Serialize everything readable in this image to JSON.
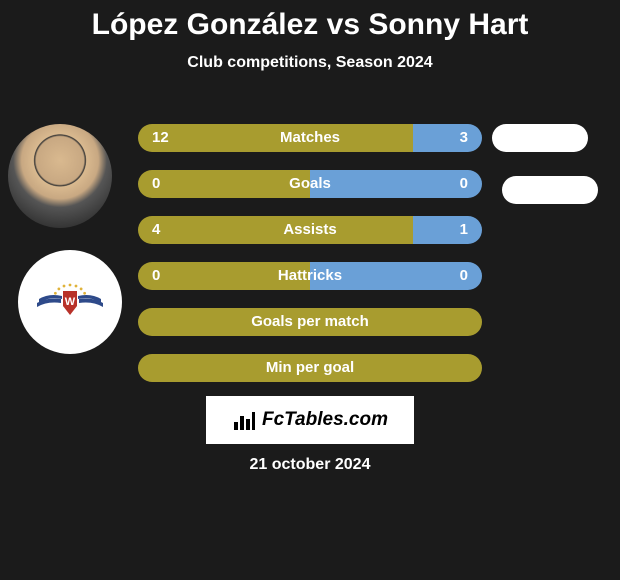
{
  "title": "López González vs Sonny Hart",
  "subtitle": "Club competitions, Season 2024",
  "date": "21 october 2024",
  "fctables": "FcTables.com",
  "colors": {
    "olive": "#a89c2f",
    "blue": "#6aa0d7",
    "background": "#1b1b1b",
    "white": "#ffffff",
    "text": "#ffffff"
  },
  "comparison_rows": [
    {
      "label": "Matches",
      "left": "12",
      "right": "3",
      "left_pct": 80,
      "right_pct": 20,
      "left_color": "#a89c2f",
      "right_color": "#6aa0d7"
    },
    {
      "label": "Goals",
      "left": "0",
      "right": "0",
      "left_pct": 50,
      "right_pct": 50,
      "left_color": "#a89c2f",
      "right_color": "#6aa0d7"
    },
    {
      "label": "Assists",
      "left": "4",
      "right": "1",
      "left_pct": 80,
      "right_pct": 20,
      "left_color": "#a89c2f",
      "right_color": "#6aa0d7"
    },
    {
      "label": "Hattricks",
      "left": "0",
      "right": "0",
      "left_pct": 50,
      "right_pct": 50,
      "left_color": "#a89c2f",
      "right_color": "#6aa0d7"
    }
  ],
  "single_rows": [
    {
      "label": "Goals per match",
      "color": "#a89c2f"
    },
    {
      "label": "Min per goal",
      "color": "#a89c2f"
    }
  ],
  "logo": {
    "wing_color": "#2e4a8a",
    "shield_color": "#b8322a",
    "shield_text": "W",
    "star_color": "#e0b33a"
  }
}
